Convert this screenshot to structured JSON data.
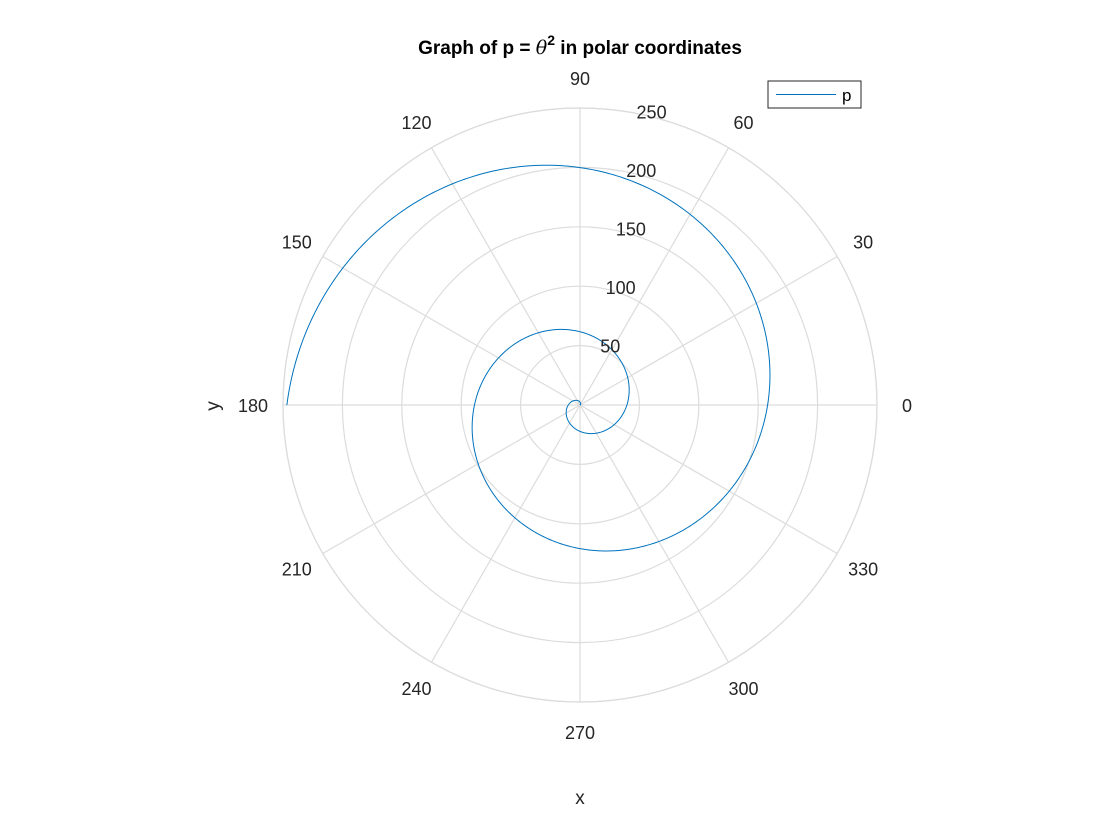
{
  "chart_data": {
    "type": "line",
    "coordinate_system": "polar",
    "title_parts": {
      "prefix": "Graph of p = ",
      "variable": "θ",
      "exponent": "2",
      "suffix": " in polar coordinates"
    },
    "xlabel": "x",
    "ylabel": "y",
    "angle_unit": "degrees",
    "theta_ticks": [
      "0",
      "30",
      "60",
      "90",
      "120",
      "150",
      "180",
      "210",
      "240",
      "270",
      "300",
      "330"
    ],
    "r_ticks": [
      "50",
      "100",
      "150",
      "200",
      "250"
    ],
    "r_lim": [
      0,
      250
    ],
    "theta_zero_location": "right",
    "theta_direction": "counterclockwise",
    "grid": true,
    "legend": {
      "position": "top-right",
      "entries": [
        "p"
      ]
    },
    "series": [
      {
        "name": "p",
        "color": "#0072BD",
        "expression": "p = theta^2",
        "theta_range_rad": [
          0,
          15.708
        ],
        "theta_rad": [
          0,
          0.5,
          1,
          1.5,
          2,
          2.5,
          3,
          3.5,
          4,
          4.5,
          5,
          5.5,
          6,
          6.5,
          7,
          7.5,
          8,
          8.5,
          9,
          9.5,
          10,
          10.5,
          11,
          11.5,
          12,
          12.5,
          13,
          13.5,
          14,
          14.5,
          15,
          15.5,
          15.708
        ],
        "r": [
          0,
          0.25,
          1,
          2.25,
          4,
          6.25,
          9,
          12.25,
          16,
          20.25,
          25,
          30.25,
          36,
          42.25,
          49,
          56.25,
          64,
          72.25,
          81,
          90.25,
          100,
          110.25,
          121,
          132.25,
          144,
          156.25,
          169,
          182.25,
          196,
          210.25,
          225,
          240.25,
          246.74
        ]
      }
    ]
  },
  "colors": {
    "grid": "#dcdcdc",
    "text": "#262626",
    "series": "#0072BD"
  }
}
